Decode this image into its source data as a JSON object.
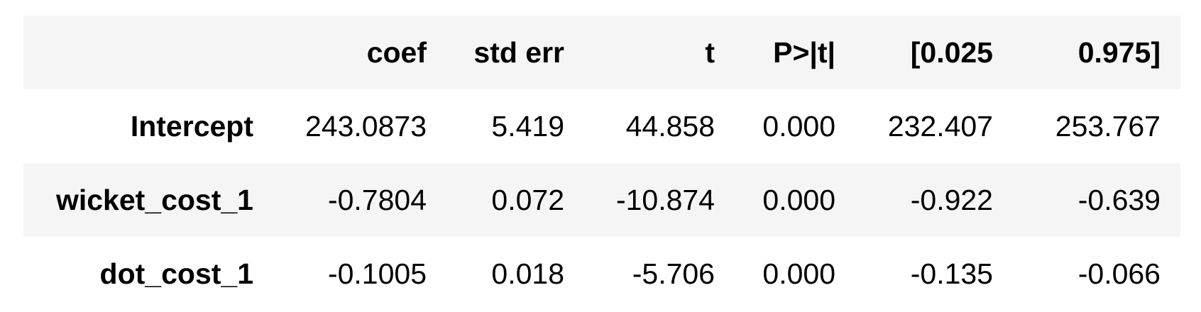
{
  "table": {
    "columns": [
      "",
      "coef",
      "std err",
      "t",
      "P>|t|",
      "[0.025",
      "0.975]"
    ],
    "rows": [
      {
        "label": "Intercept",
        "values": [
          "243.0873",
          "5.419",
          "44.858",
          "0.000",
          "232.407",
          "253.767"
        ]
      },
      {
        "label": "wicket_cost_1",
        "values": [
          "-0.7804",
          "0.072",
          "-10.874",
          "0.000",
          "-0.922",
          "-0.639"
        ]
      },
      {
        "label": "dot_cost_1",
        "values": [
          "-0.1005",
          "0.018",
          "-5.706",
          "0.000",
          "-0.135",
          "-0.066"
        ]
      }
    ]
  },
  "colors": {
    "stripe": "#f5f5f5",
    "background": "#ffffff",
    "text": "#000000"
  }
}
